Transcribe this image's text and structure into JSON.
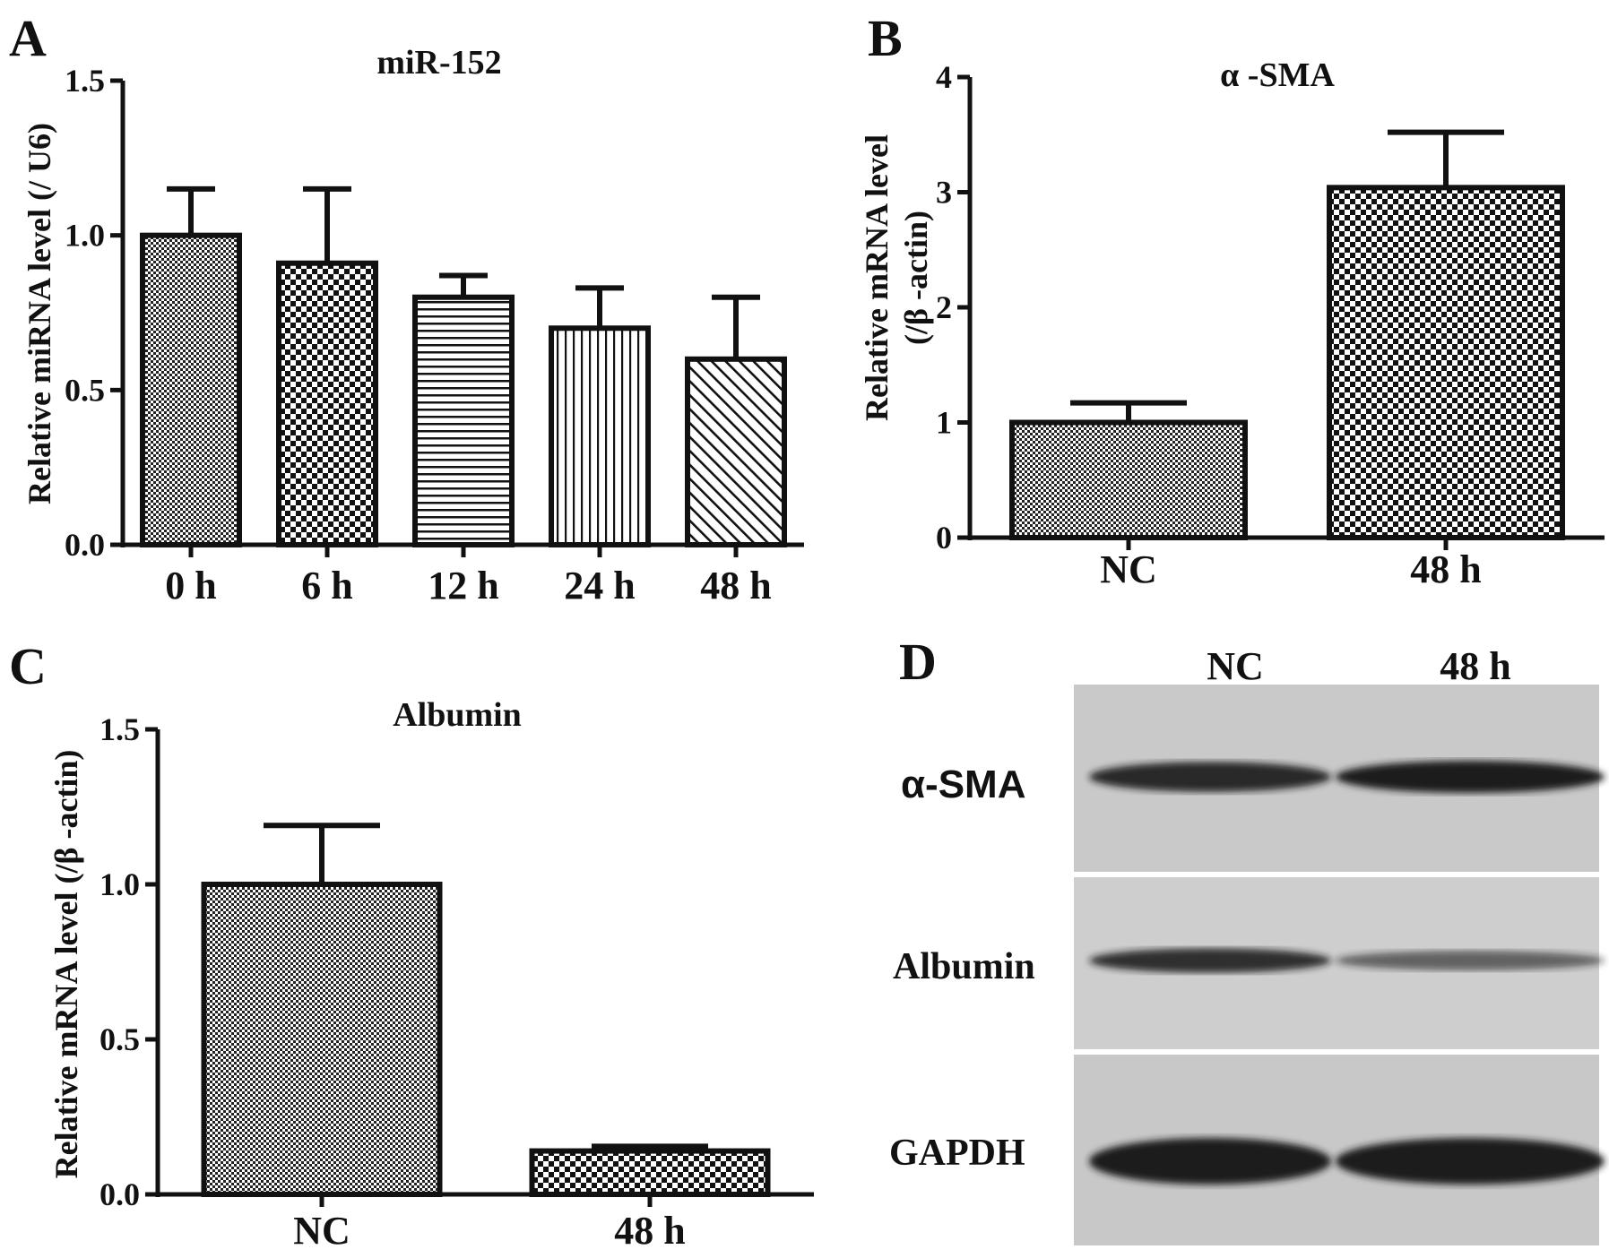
{
  "figure": {
    "panel_letters": [
      "A",
      "B",
      "C",
      "D"
    ]
  },
  "chart_data": [
    {
      "panel": "A",
      "type": "bar",
      "title": "miR-152",
      "ylabel": "Relative miRNA level (/ U6)",
      "xlabel": "",
      "categories": [
        "0 h",
        "6 h",
        "12 h",
        "24 h",
        "48 h"
      ],
      "values": [
        1.0,
        0.91,
        0.8,
        0.7,
        0.6
      ],
      "error_upper": [
        1.15,
        1.15,
        0.87,
        0.83,
        0.8
      ],
      "patterns": [
        "fine-check",
        "check",
        "horizontal-lines",
        "vertical-lines",
        "diagonal-lines"
      ],
      "ylim": [
        0,
        1.5
      ],
      "yticks": [
        0.0,
        0.5,
        1.0,
        1.5
      ],
      "ytick_labels": [
        "0.0",
        "0.5",
        "1.0",
        "1.5"
      ],
      "grid": false
    },
    {
      "panel": "B",
      "type": "bar",
      "title": "α -SMA",
      "ylabel_lines": [
        "Relative mRNA level",
        "(/β -actin)"
      ],
      "xlabel": "",
      "categories": [
        "NC",
        "48 h"
      ],
      "values": [
        1.0,
        3.04
      ],
      "error_upper": [
        1.17,
        3.52
      ],
      "patterns": [
        "fine-check",
        "check"
      ],
      "ylim": [
        0,
        4
      ],
      "yticks": [
        0,
        1,
        2,
        3,
        4
      ],
      "ytick_labels": [
        "0",
        "1",
        "2",
        "3",
        "4"
      ],
      "grid": false
    },
    {
      "panel": "C",
      "type": "bar",
      "title": "Albumin",
      "ylabel": "Relative mRNA level (/β -actin)",
      "xlabel": "",
      "categories": [
        "NC",
        "48 h"
      ],
      "values": [
        1.0,
        0.14
      ],
      "error_upper": [
        1.19,
        0.155
      ],
      "patterns": [
        "fine-check",
        "check"
      ],
      "ylim": [
        0,
        1.5
      ],
      "yticks": [
        0.0,
        0.5,
        1.0,
        1.5
      ],
      "ytick_labels": [
        "0.0",
        "0.5",
        "1.0",
        "1.5"
      ],
      "grid": false
    }
  ],
  "western_blot": {
    "panel": "D",
    "lanes": [
      "NC",
      "48 h"
    ],
    "rows": [
      {
        "label": "α-SMA",
        "nc_intensity": 0.85,
        "h48_intensity": 1.0
      },
      {
        "label": "Albumin",
        "nc_intensity": 0.8,
        "h48_intensity": 0.4
      },
      {
        "label": "GAPDH",
        "nc_intensity": 1.0,
        "h48_intensity": 1.0
      }
    ]
  }
}
